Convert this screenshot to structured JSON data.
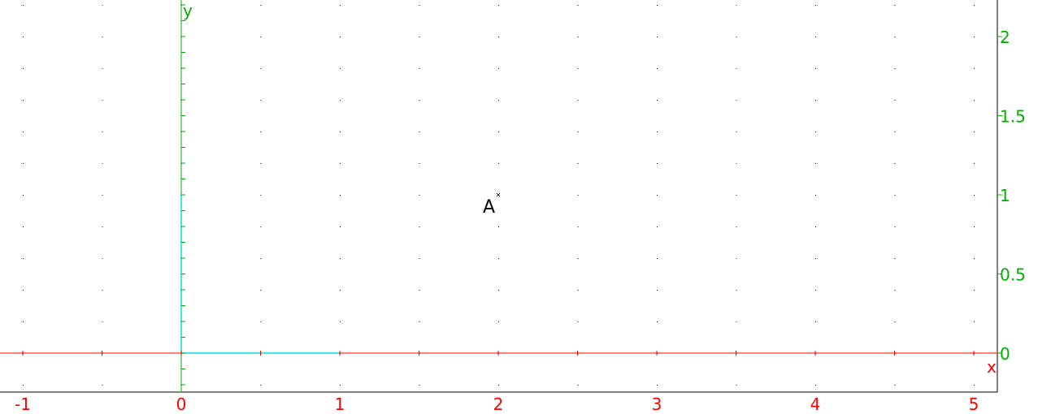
{
  "colors": {
    "x_axis": "#ff0000",
    "y_axis": "#00b000",
    "unit_vector": "#00e0e0",
    "grid_dots": "#000000",
    "frame": "#000000"
  },
  "axes": {
    "x_label": "x",
    "y_label": "y",
    "x_ticks": [
      "-1",
      "0",
      "1",
      "2",
      "3",
      "4",
      "5"
    ],
    "y_ticks": [
      "0",
      "0.5",
      "1",
      "1.5",
      "2"
    ],
    "x_range": [
      -1.1,
      5.15
    ],
    "y_range": [
      -0.25,
      2.22
    ],
    "grid_step_x": 0.5,
    "grid_step_y": 0.2
  },
  "points": [
    {
      "label": "A",
      "x": 2,
      "y": 1
    }
  ],
  "unit_vectors": {
    "x_end": 1,
    "y_end": 1
  }
}
